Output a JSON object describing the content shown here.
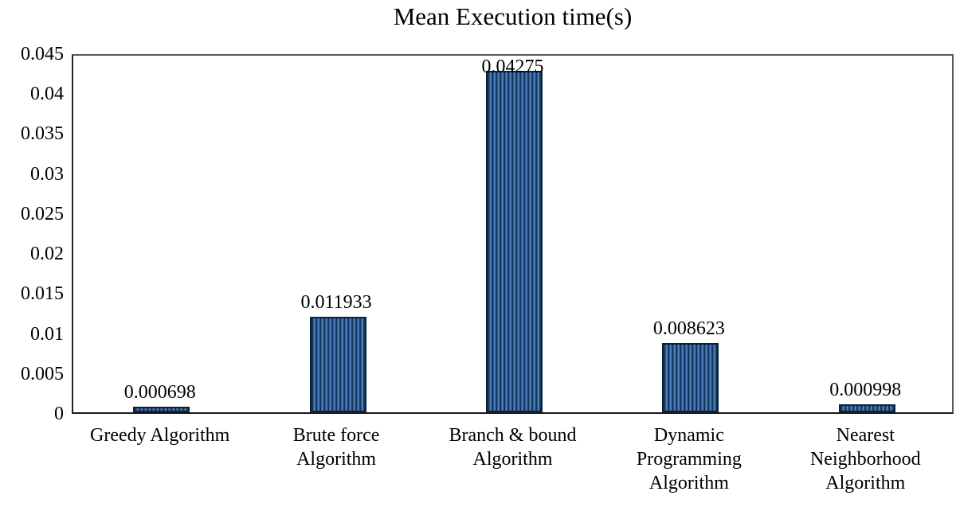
{
  "chart_data": {
    "type": "bar",
    "title": "Mean Execution time(s)",
    "categories": [
      "Greedy Algorithm",
      "Brute force Algorithm",
      "Branch & bound Algorithm",
      "Dynamic Programming Algorithm",
      "Nearest Neighborhood Algorithm"
    ],
    "category_line_breaks": [
      [
        "Greedy Algorithm"
      ],
      [
        "Brute force",
        "Algorithm"
      ],
      [
        "Branch & bound",
        "Algorithm"
      ],
      [
        "Dynamic",
        "Programming",
        "Algorithm"
      ],
      [
        "Nearest",
        "Neighborhood",
        "Algorithm"
      ]
    ],
    "values": [
      0.000698,
      0.011933,
      0.04275,
      0.008623,
      0.000998
    ],
    "data_labels": [
      "0.000698",
      "0.011933",
      "0.04275",
      "0.008623",
      "0.000998"
    ],
    "xlabel": "",
    "ylabel": "",
    "ylim": [
      0,
      0.045
    ],
    "ytick_step": 0.005,
    "yticks": [
      0,
      0.005,
      0.01,
      0.015,
      0.02,
      0.025,
      0.03,
      0.035,
      0.04,
      0.045
    ],
    "grid": false,
    "legend": false,
    "colors": {
      "bar_stripe_dark": "#17375e",
      "bar_stripe_light": "#4a7ebc",
      "bar_outline": "#0d1f35",
      "plot_border": "#595959",
      "axis_line": "#1a1a1a",
      "text": "#000000"
    }
  }
}
